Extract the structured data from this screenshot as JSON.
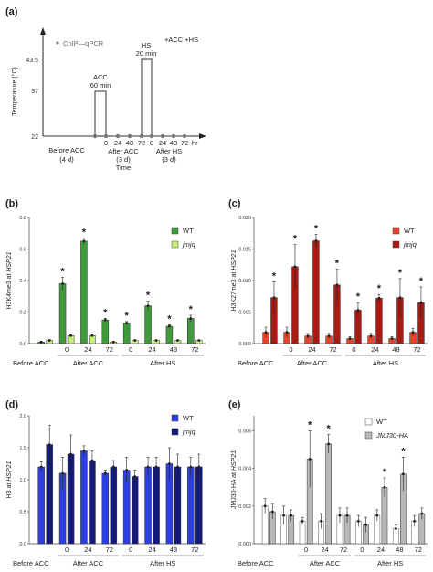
{
  "panel_a": {
    "label": "(a)",
    "ylabel": "Temperature (°C)",
    "yticks": [
      "43.5",
      "37",
      "22"
    ],
    "legend_dot_label": "ChIP—qPCR",
    "condition": "+ACC +HS",
    "acc_label": "ACC",
    "acc_time": "60 min",
    "hs_label": "HS",
    "hs_time": "20 min",
    "before_label": "Before ACC",
    "before_duration": "(4 d)",
    "after_acc_label": "After ACC",
    "after_acc_duration": "(3 d)",
    "after_hs_label": "After HS",
    "after_hs_duration": "(3 d)",
    "time_label": "Time",
    "after_acc_ticks": [
      "0",
      "24",
      "48",
      "72"
    ],
    "after_hs_ticks": [
      "0",
      "24",
      "48",
      "72"
    ],
    "hr_label": "hr"
  },
  "chart_data": [
    {
      "panel": "(b)",
      "type": "bar",
      "ylabel_prefix": "H3K4me3 at ",
      "ylabel_gene": "HSP21",
      "yticks": [
        "0.0",
        "0.2",
        "0.4",
        "0.6",
        "0.8"
      ],
      "ylim": [
        0,
        0.8
      ],
      "xticks": [
        "0",
        "24",
        "72",
        "0",
        "24",
        "48",
        "72"
      ],
      "groups": [
        {
          "label": "Before ACC",
          "n": 1
        },
        {
          "label": "After ACC",
          "n": 3
        },
        {
          "label": "After HS",
          "n": 4
        }
      ],
      "series": [
        {
          "name": "WT",
          "color": "#3f9a3b",
          "values": [
            0.01,
            0.38,
            0.65,
            0.15,
            0.13,
            0.24,
            0.11,
            0.16
          ],
          "errors": [
            0.005,
            0.04,
            0.02,
            0.01,
            0.01,
            0.03,
            0.01,
            0.02
          ]
        },
        {
          "name": "jmjq",
          "color": "#c6f07a",
          "values": [
            0.02,
            0.05,
            0.05,
            0.01,
            0.02,
            0.02,
            0.02,
            0.02
          ],
          "errors": [
            0.005,
            0.005,
            0.005,
            0.003,
            0.003,
            0.003,
            0.003,
            0.003
          ]
        }
      ],
      "asterisks": [
        1,
        2,
        3,
        4,
        5,
        6,
        7
      ]
    },
    {
      "panel": "(c)",
      "type": "bar",
      "ylabel_prefix": "H3K27me3 at ",
      "ylabel_gene": "HSP21",
      "yticks": [
        "0.000",
        "0.005",
        "0.010",
        "0.015",
        "0.020"
      ],
      "ylim": [
        0,
        0.02
      ],
      "xticks": [
        "0",
        "24",
        "72",
        "0",
        "24",
        "48",
        "72"
      ],
      "groups": [
        {
          "label": "Before ACC",
          "n": 1
        },
        {
          "label": "After ACC",
          "n": 3
        },
        {
          "label": "After HS",
          "n": 4
        }
      ],
      "series": [
        {
          "name": "WT",
          "color": "#e8442c",
          "values": [
            0.0018,
            0.0018,
            0.0012,
            0.0012,
            0.0008,
            0.0012,
            0.0008,
            0.0018
          ],
          "errors": [
            0.0008,
            0.0008,
            0.0004,
            0.0004,
            0.0003,
            0.0004,
            0.0003,
            0.0006
          ]
        },
        {
          "name": "jmjq",
          "color": "#a81a12",
          "values": [
            0.0073,
            0.0122,
            0.0163,
            0.0093,
            0.0053,
            0.0072,
            0.0073,
            0.0065
          ],
          "errors": [
            0.0025,
            0.0035,
            0.001,
            0.0025,
            0.0012,
            0.0006,
            0.003,
            0.0025
          ]
        }
      ],
      "asterisks": [
        0,
        1,
        2,
        3,
        4,
        5,
        6,
        7
      ]
    },
    {
      "panel": "(d)",
      "type": "bar",
      "ylabel_prefix": "H3 at ",
      "ylabel_gene": "HSP21",
      "yticks": [
        "0.0",
        "0.5",
        "1.0",
        "1.5",
        "2.0"
      ],
      "ylim": [
        0,
        2
      ],
      "xticks": [
        "0",
        "24",
        "72",
        "0",
        "24",
        "48",
        "72"
      ],
      "groups": [
        {
          "label": "Before ACC",
          "n": 1
        },
        {
          "label": "After ACC",
          "n": 3
        },
        {
          "label": "After HS",
          "n": 4
        }
      ],
      "series": [
        {
          "name": "WT",
          "color": "#2d3fe0",
          "values": [
            1.2,
            1.1,
            1.45,
            1.1,
            1.15,
            1.2,
            1.25,
            1.2
          ],
          "errors": [
            0.08,
            0.25,
            0.08,
            0.05,
            0.2,
            0.15,
            0.25,
            0.15
          ]
        },
        {
          "name": "jmjq",
          "color": "#131a7a",
          "values": [
            1.55,
            1.4,
            1.3,
            1.2,
            1.05,
            1.2,
            1.2,
            1.2
          ],
          "errors": [
            0.3,
            0.3,
            0.15,
            0.1,
            0.1,
            0.15,
            0.2,
            0.2
          ]
        }
      ],
      "asterisks": []
    },
    {
      "panel": "(e)",
      "type": "bar",
      "ylabel_prefix": "JMJ30-HA at ",
      "ylabel_gene": "HSP21",
      "yticks": [
        "0.000",
        "0.002",
        "0.004",
        "0.006"
      ],
      "ylim": [
        0,
        0.0068
      ],
      "xticks": [
        "0",
        "24",
        "72",
        "0",
        "24",
        "48",
        "72"
      ],
      "groups": [
        {
          "label": "Before ACC",
          "n": 2
        },
        {
          "label": "After ACC",
          "n": 3
        },
        {
          "label": "After HS",
          "n": 4
        }
      ],
      "series": [
        {
          "name": "WT",
          "color": "#ffffff",
          "values": [
            0.002,
            0.0015,
            0.0012,
            0.0012,
            0.0015,
            0.0012,
            0.0015,
            0.0008,
            0.0012
          ],
          "errors": [
            0.0004,
            0.0005,
            0.0002,
            0.0004,
            0.0004,
            0.0003,
            0.0003,
            0.0002,
            0.0003
          ]
        },
        {
          "name": "JMJ30-HA",
          "color": "#b8b8b8",
          "values": [
            0.0017,
            0.0015,
            0.0045,
            0.0053,
            0.0015,
            0.001,
            0.003,
            0.0037,
            0.0016
          ],
          "errors": [
            0.0004,
            0.0003,
            0.0015,
            0.0005,
            0.0004,
            0.0004,
            0.0005,
            0.0009,
            0.0003
          ]
        }
      ],
      "asterisks": [
        2,
        3,
        6,
        7
      ]
    }
  ]
}
